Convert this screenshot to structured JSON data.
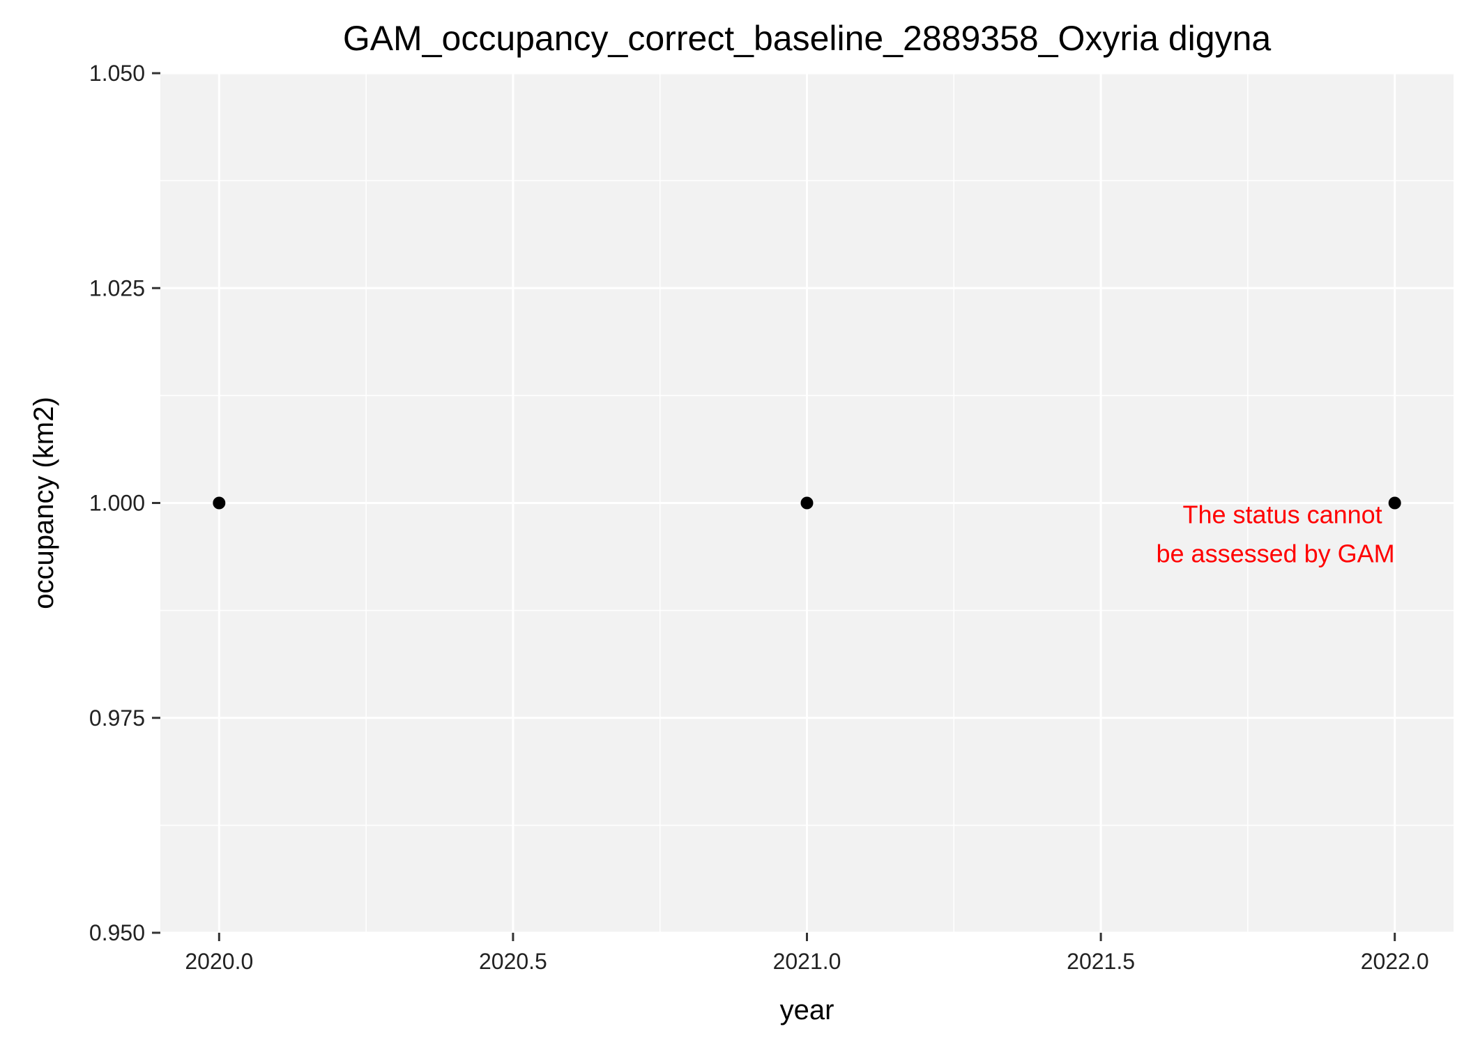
{
  "chart_data": {
    "type": "scatter",
    "title": "GAM_occupancy_correct_baseline_2889358_Oxyria digyna",
    "xlabel": "year",
    "ylabel": "occupancy (km2)",
    "x": [
      2020,
      2021,
      2022
    ],
    "series": [
      {
        "values": [
          1.0,
          1.0,
          1.0
        ]
      }
    ],
    "xlim": [
      2019.9,
      2022.1
    ],
    "ylim": [
      0.95,
      1.05
    ],
    "xticks": [
      2020.0,
      2020.5,
      2021.0,
      2021.5,
      2022.0
    ],
    "xtick_labels": [
      "2020.0",
      "2020.5",
      "2021.0",
      "2021.5",
      "2022.0"
    ],
    "yticks": [
      0.95,
      0.975,
      1.0,
      1.025,
      1.05
    ],
    "ytick_labels": [
      "0.950",
      "0.975",
      "1.000",
      "1.025",
      "1.050"
    ],
    "grid": true,
    "annotation": {
      "lines": [
        "The status cannot",
        "be assessed by GAM"
      ],
      "x": 2022.0,
      "y": 1.0,
      "color": "#ff0000"
    },
    "colors": {
      "panel_background": "#f2f2f2",
      "grid": "#ffffff",
      "points": "#000000"
    }
  }
}
